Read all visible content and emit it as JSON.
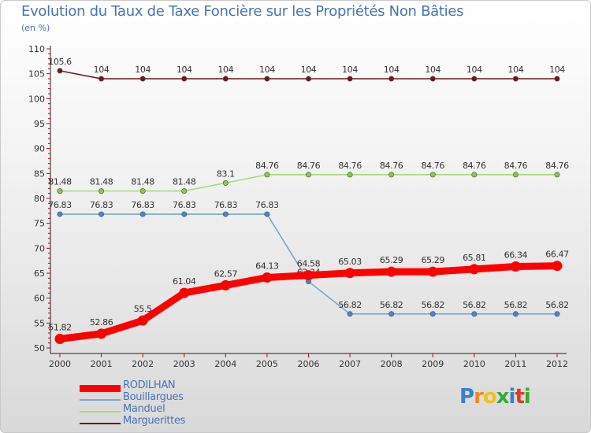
{
  "chart_data": {
    "type": "line",
    "title": "Evolution du Taux de Taxe Foncière sur les Propriétés Non Bâties",
    "unit_label": "(en %)",
    "xlabel": "",
    "ylabel": "",
    "categories": [
      "2000",
      "2001",
      "2002",
      "2003",
      "2004",
      "2005",
      "2006",
      "2007",
      "2008",
      "2009",
      "2010",
      "2011",
      "2012"
    ],
    "ylim": [
      50,
      110
    ],
    "yticks": [
      50,
      55,
      60,
      65,
      70,
      75,
      80,
      85,
      90,
      95,
      100,
      105,
      110
    ],
    "series": [
      {
        "name": "Marguerittes",
        "color": "#6b1a1a",
        "point_color": "#6b1a1a",
        "emphasis": false,
        "values": [
          105.6,
          104,
          104,
          104,
          104,
          104,
          104,
          104,
          104,
          104,
          104,
          104,
          104
        ],
        "labels": [
          "105.6",
          "104",
          "104",
          "104",
          "104",
          "104",
          "104",
          "104",
          "104",
          "104",
          "104",
          "104",
          "104"
        ]
      },
      {
        "name": "Manduel",
        "color": "#a6db7a",
        "point_color": "#86c94a",
        "emphasis": false,
        "values": [
          81.48,
          81.48,
          81.48,
          81.48,
          83.1,
          84.76,
          84.76,
          84.76,
          84.76,
          84.76,
          84.76,
          84.76,
          84.76
        ],
        "labels": [
          "81.48",
          "81.48",
          "81.48",
          "81.48",
          "83.1",
          "84.76",
          "84.76",
          "84.76",
          "84.76",
          "84.76",
          "84.76",
          "84.76",
          "84.76"
        ]
      },
      {
        "name": "Bouillargues",
        "color": "#7ba7cf",
        "point_color": "#4a86c4",
        "emphasis": false,
        "values": [
          76.83,
          76.83,
          76.83,
          76.83,
          76.83,
          76.83,
          63.34,
          56.82,
          56.82,
          56.82,
          56.82,
          56.82,
          56.82
        ],
        "labels": [
          "76.83",
          "76.83",
          "76.83",
          "76.83",
          "76.83",
          "76.83",
          "63.34",
          "56.82",
          "56.82",
          "56.82",
          "56.82",
          "56.82",
          "56.82"
        ]
      },
      {
        "name": "RODILHAN",
        "color": "#ff0000",
        "point_color": "#ff0000",
        "emphasis": true,
        "values": [
          51.82,
          52.86,
          55.5,
          61.04,
          62.57,
          64.13,
          64.58,
          65.03,
          65.29,
          65.29,
          65.81,
          66.34,
          66.47
        ],
        "labels": [
          "51.82",
          "52.86",
          "55.5",
          "61.04",
          "62.57",
          "64.13",
          "64.58",
          "65.03",
          "65.29",
          "65.29",
          "65.81",
          "66.34",
          "66.47"
        ]
      }
    ],
    "legend_order": [
      "RODILHAN",
      "Bouillargues",
      "Manduel",
      "Marguerittes"
    ],
    "grid": false
  },
  "logo": {
    "letters": [
      "P",
      "r",
      "o",
      "x",
      "i",
      "t",
      "i"
    ],
    "colors": [
      "#3a7fc8",
      "#f08a1d",
      "#f4c01a",
      "#3aaa35",
      "#3a7fc8",
      "#e23a1f",
      "#3aaa35"
    ]
  }
}
